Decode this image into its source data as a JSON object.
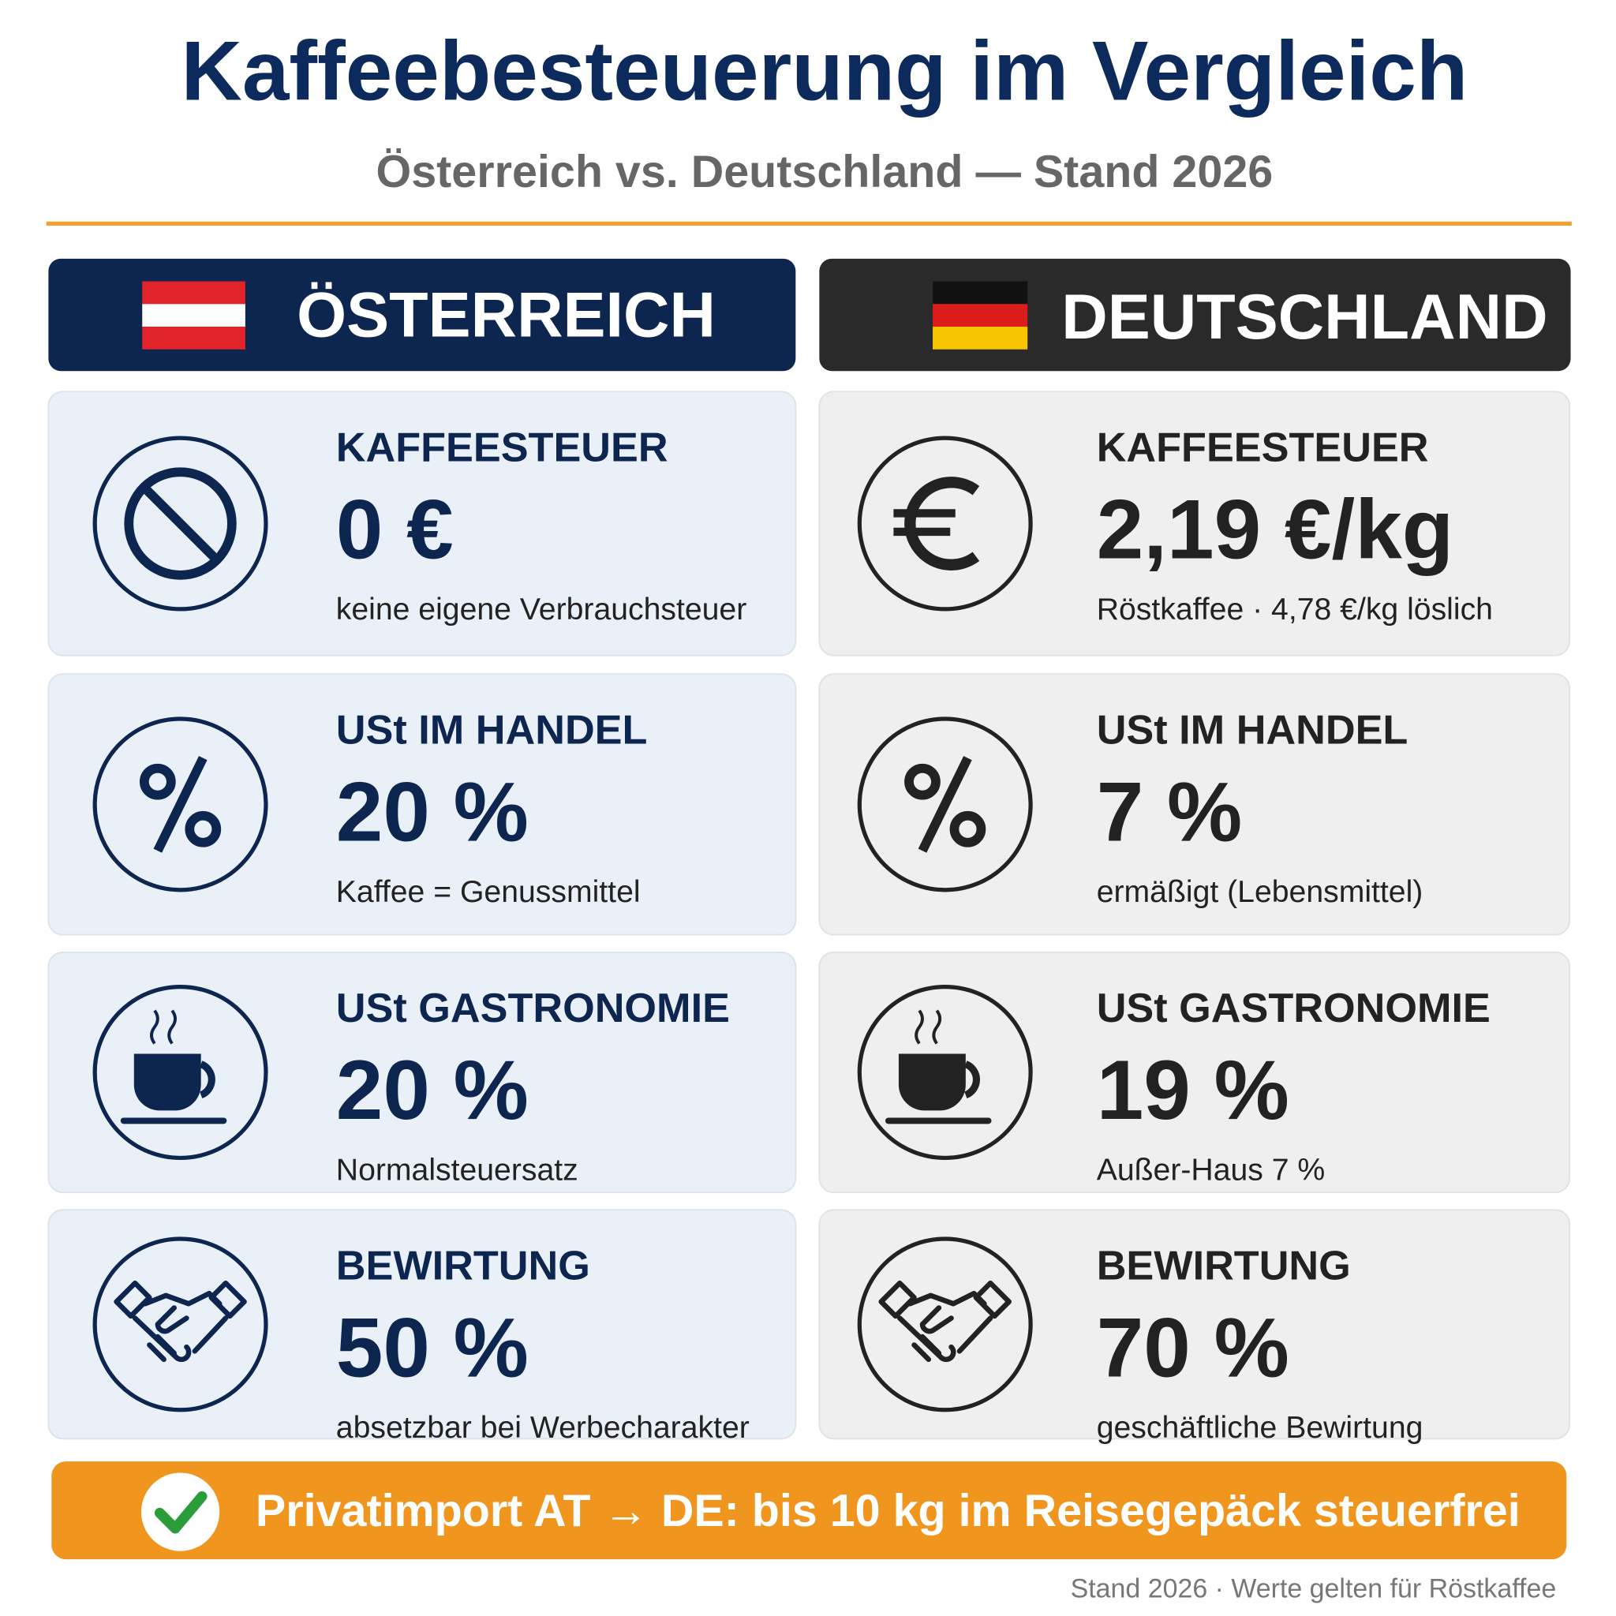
{
  "title": "Kaffeebesteuerung im Vergleich",
  "subtitle": "Österreich vs. Deutschland — Stand 2026",
  "columns": [
    {
      "name": "ÖSTERREICH",
      "cards": [
        {
          "label": "KAFFEESTEUER",
          "value": "0 €",
          "note": "keine eigene Verbrauchsteuer"
        },
        {
          "label": "USt IM HANDEL",
          "value": "20 %",
          "note": "Kaffee = Genussmittel"
        },
        {
          "label": "USt GASTRONOMIE",
          "value": "20 %",
          "note": "Normalsteuersatz"
        },
        {
          "label": "BEWIRTUNG",
          "value": "50 %",
          "note": "absetzbar bei Werbecharakter"
        }
      ]
    },
    {
      "name": "DEUTSCHLAND",
      "cards": [
        {
          "label": "KAFFEESTEUER",
          "value": "2,19 €/kg",
          "note": "Röstkaffee · 4,78 €/kg löslich"
        },
        {
          "label": "USt IM HANDEL",
          "value": "7 %",
          "note": "ermäßigt (Lebensmittel)"
        },
        {
          "label": "USt GASTRONOMIE",
          "value": "19 %",
          "note": "Außer-Haus 7 %"
        },
        {
          "label": "BEWIRTUNG",
          "value": "70 %",
          "note": "geschäftliche Bewirtung"
        }
      ]
    }
  ],
  "banner": "Privatimport AT → DE: bis 10 kg im Reisegepäck steuerfrei",
  "footer": "Stand 2026 · Werte gelten für Röstkaffee"
}
